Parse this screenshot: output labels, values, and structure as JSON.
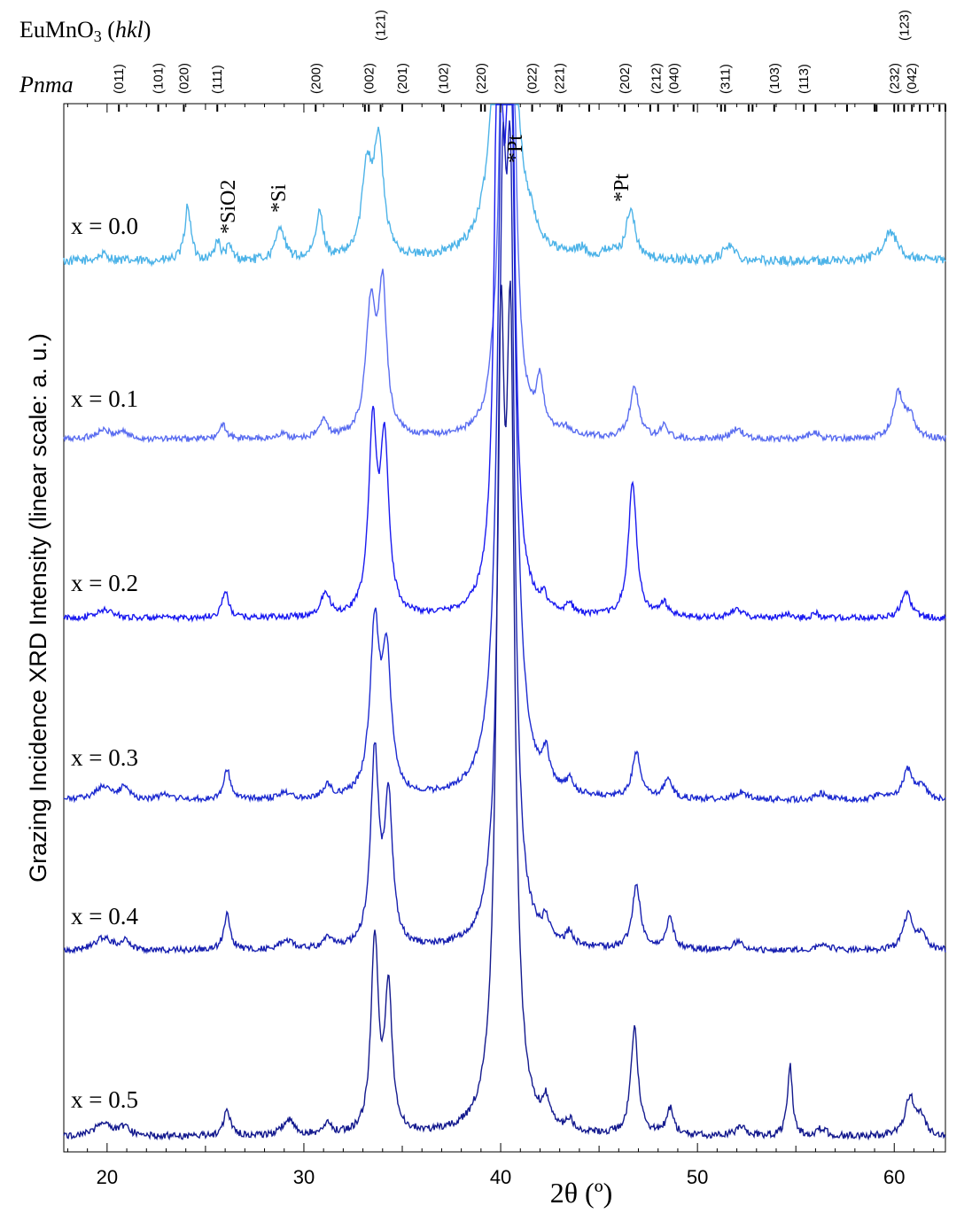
{
  "chart_data": {
    "type": "line",
    "title": "EuMnO3 (hkl)",
    "subtitle": "Pnma",
    "xlabel": "2θ (º)",
    "ylabel": "Grazing Incidence XRD Intensity (linear scale: a. u.)",
    "xlim": [
      17.8,
      62.6
    ],
    "xticks": [
      20,
      30,
      40,
      50,
      60
    ],
    "grid": false,
    "legend": "none",
    "hkl_labels": [
      {
        "x": 20.6,
        "label": "(011)"
      },
      {
        "x": 22.6,
        "label": "(101)"
      },
      {
        "x": 23.9,
        "label": "(020)"
      },
      {
        "x": 25.6,
        "label": "(111)"
      },
      {
        "x": 30.6,
        "label": "(200)"
      },
      {
        "x": 33.3,
        "label": "(002)"
      },
      {
        "x": 33.9,
        "label": "(121)"
      },
      {
        "x": 35.0,
        "label": "(201)"
      },
      {
        "x": 37.1,
        "label": "(102)"
      },
      {
        "x": 39.0,
        "label": "(220)"
      },
      {
        "x": 41.6,
        "label": "(022)"
      },
      {
        "x": 43.0,
        "label": "(221)"
      },
      {
        "x": 46.3,
        "label": "(202)"
      },
      {
        "x": 47.9,
        "label": "(212)"
      },
      {
        "x": 48.8,
        "label": "(040)"
      },
      {
        "x": 51.4,
        "label": "(311)"
      },
      {
        "x": 53.9,
        "label": "(103)"
      },
      {
        "x": 55.4,
        "label": "(113)"
      },
      {
        "x": 60.0,
        "label": "(232)"
      },
      {
        "x": 60.5,
        "label": "(123)"
      },
      {
        "x": 60.9,
        "label": "(042)"
      }
    ],
    "reflection_marks": [
      20.6,
      22.6,
      23.9,
      25.6,
      30.6,
      33.1,
      33.3,
      33.9,
      35.0,
      37.1,
      39.0,
      39.2,
      41.6,
      42.9,
      43.1,
      44.5,
      46.3,
      47.6,
      48.0,
      48.8,
      49.8,
      51.2,
      51.4,
      52.6,
      52.8,
      53.9,
      55.4,
      56.0,
      57.6,
      59.0,
      59.1,
      60.0,
      60.2,
      60.5,
      60.9,
      61.3,
      61.7,
      62.3,
      62.6
    ],
    "annotations": [
      {
        "x": 26.1,
        "text": "*SiO2",
        "series": "x = 0.0"
      },
      {
        "x": 28.8,
        "text": "*Si",
        "series": "x = 0.0"
      },
      {
        "x": 40.2,
        "text": "*Pt",
        "series": "x = 0.0"
      },
      {
        "x": 46.6,
        "text": "*Pt",
        "series": "x = 0.0"
      }
    ],
    "series": [
      {
        "name": "x = 0.0",
        "color": "#4db3e8",
        "baseline": 0.18,
        "noise": 0.35,
        "peaks": [
          [
            19.8,
            0.5,
            0.4
          ],
          [
            24.1,
            4.2,
            0.18
          ],
          [
            25.6,
            1.5,
            0.15
          ],
          [
            26.2,
            1.0,
            0.2
          ],
          [
            28.8,
            2.6,
            0.25
          ],
          [
            30.8,
            3.5,
            0.22
          ],
          [
            33.2,
            6.5,
            0.3
          ],
          [
            33.8,
            8.5,
            0.3
          ],
          [
            40.2,
            60,
            0.35
          ],
          [
            41.5,
            1.0,
            0.3
          ],
          [
            44.1,
            0.6,
            0.3
          ],
          [
            45.5,
            0.6,
            0.3
          ],
          [
            46.6,
            3.8,
            0.28
          ],
          [
            51.6,
            1.2,
            0.35
          ],
          [
            59.8,
            2.2,
            0.45
          ]
        ]
      },
      {
        "name": "x = 0.1",
        "color": "#5a6df0",
        "baseline": 0.12,
        "noise": 0.22,
        "peaks": [
          [
            19.8,
            0.6,
            0.5
          ],
          [
            20.8,
            0.5,
            0.3
          ],
          [
            25.9,
            1.0,
            0.2
          ],
          [
            28.9,
            0.4,
            0.2
          ],
          [
            31.0,
            1.2,
            0.25
          ],
          [
            33.4,
            9.0,
            0.3
          ],
          [
            34.0,
            10.0,
            0.25
          ],
          [
            39.6,
            1.2,
            0.2
          ],
          [
            40.2,
            40,
            0.22
          ],
          [
            40.5,
            40,
            0.22
          ],
          [
            42.0,
            3.5,
            0.2
          ],
          [
            43.3,
            0.5,
            0.3
          ],
          [
            46.8,
            3.6,
            0.28
          ],
          [
            48.3,
            1.0,
            0.2
          ],
          [
            52.0,
            0.7,
            0.35
          ],
          [
            55.9,
            0.5,
            0.3
          ],
          [
            60.2,
            3.2,
            0.3
          ],
          [
            60.8,
            1.5,
            0.3
          ]
        ]
      },
      {
        "name": "x = 0.2",
        "color": "#1a1af0",
        "baseline": 0.1,
        "noise": 0.18,
        "peaks": [
          [
            19.9,
            0.5,
            0.5
          ],
          [
            26.0,
            1.6,
            0.2
          ],
          [
            31.1,
            1.5,
            0.25
          ],
          [
            33.5,
            11.0,
            0.25
          ],
          [
            34.1,
            10.0,
            0.25
          ],
          [
            39.9,
            40,
            0.22
          ],
          [
            40.5,
            40,
            0.22
          ],
          [
            42.2,
            0.7,
            0.2
          ],
          [
            43.5,
            0.6,
            0.2
          ],
          [
            46.7,
            8.0,
            0.25
          ],
          [
            48.3,
            0.8,
            0.25
          ],
          [
            52.0,
            0.5,
            0.35
          ],
          [
            54.5,
            0.3,
            0.2
          ],
          [
            56.0,
            0.3,
            0.2
          ],
          [
            60.6,
            1.5,
            0.3
          ]
        ]
      },
      {
        "name": "x = 0.3",
        "color": "#1d2bd0",
        "baseline": 0.1,
        "noise": 0.2,
        "peaks": [
          [
            19.8,
            0.9,
            0.5
          ],
          [
            20.9,
            0.9,
            0.25
          ],
          [
            23.0,
            0.4,
            0.3
          ],
          [
            26.1,
            2.0,
            0.2
          ],
          [
            29.0,
            0.5,
            0.3
          ],
          [
            31.2,
            0.8,
            0.25
          ],
          [
            33.6,
            11.0,
            0.28
          ],
          [
            34.2,
            9.0,
            0.28
          ],
          [
            40.1,
            40,
            0.3
          ],
          [
            40.5,
            40,
            0.3
          ],
          [
            42.3,
            2.0,
            0.22
          ],
          [
            43.5,
            0.8,
            0.2
          ],
          [
            46.9,
            3.0,
            0.25
          ],
          [
            48.5,
            1.3,
            0.25
          ],
          [
            52.2,
            0.5,
            0.35
          ],
          [
            56.3,
            0.4,
            0.3
          ],
          [
            59.3,
            0.4,
            0.3
          ],
          [
            60.7,
            2.0,
            0.3
          ],
          [
            61.4,
            0.9,
            0.25
          ]
        ]
      },
      {
        "name": "x = 0.4",
        "color": "#1820b0",
        "baseline": 0.1,
        "noise": 0.2,
        "peaks": [
          [
            19.8,
            0.8,
            0.5
          ],
          [
            20.9,
            0.6,
            0.3
          ],
          [
            26.1,
            2.2,
            0.2
          ],
          [
            29.1,
            0.6,
            0.35
          ],
          [
            31.2,
            0.8,
            0.25
          ],
          [
            33.6,
            12.0,
            0.25
          ],
          [
            34.3,
            9.0,
            0.25
          ],
          [
            40.1,
            40,
            0.25
          ],
          [
            40.5,
            40,
            0.25
          ],
          [
            42.3,
            1.2,
            0.2
          ],
          [
            43.5,
            0.8,
            0.2
          ],
          [
            46.9,
            4.0,
            0.25
          ],
          [
            48.6,
            2.0,
            0.22
          ],
          [
            52.1,
            0.6,
            0.3
          ],
          [
            56.4,
            0.5,
            0.3
          ],
          [
            60.7,
            2.2,
            0.3
          ],
          [
            61.4,
            1.0,
            0.25
          ]
        ]
      },
      {
        "name": "x = 0.5",
        "color": "#141a8e",
        "baseline": 0.1,
        "noise": 0.2,
        "peaks": [
          [
            19.8,
            0.8,
            0.5
          ],
          [
            20.9,
            0.5,
            0.3
          ],
          [
            26.1,
            1.5,
            0.2
          ],
          [
            29.2,
            0.9,
            0.35
          ],
          [
            31.2,
            0.6,
            0.25
          ],
          [
            33.6,
            11.0,
            0.22
          ],
          [
            34.3,
            8.0,
            0.22
          ],
          [
            40.0,
            40,
            0.25
          ],
          [
            40.5,
            40,
            0.25
          ],
          [
            42.3,
            1.3,
            0.2
          ],
          [
            43.5,
            0.6,
            0.2
          ],
          [
            46.8,
            6.0,
            0.22
          ],
          [
            48.6,
            1.5,
            0.22
          ],
          [
            52.2,
            0.5,
            0.3
          ],
          [
            54.7,
            4.0,
            0.15
          ],
          [
            56.3,
            0.4,
            0.3
          ],
          [
            60.8,
            2.2,
            0.3
          ],
          [
            61.4,
            0.9,
            0.25
          ]
        ]
      }
    ]
  }
}
